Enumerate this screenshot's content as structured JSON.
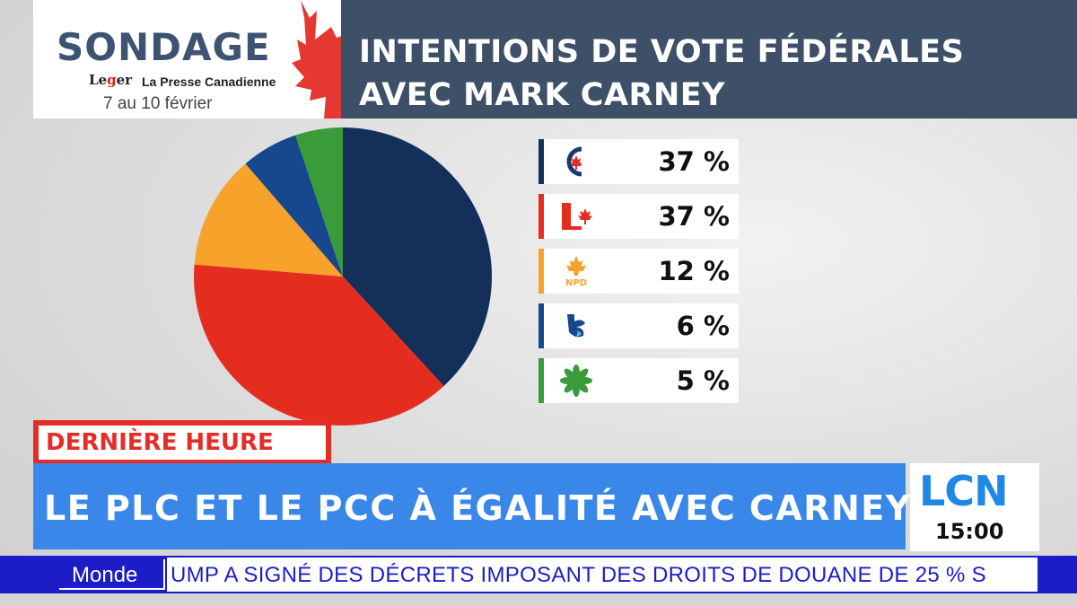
{
  "branding": {
    "sondage": "SONDAGE",
    "pollster_logo_text": "Leger",
    "partner": "La Presse Canadienne",
    "dates": "7 au 10 février"
  },
  "header": {
    "line1": "INTENTIONS DE VOTE FÉDÉRALES",
    "line2": "AVEC MARK CARNEY"
  },
  "chart_data": {
    "type": "pie",
    "slices": [
      {
        "party_icon": "conservative-logo-icon",
        "value": 37,
        "label": "37 %",
        "color": "#14305a"
      },
      {
        "party_icon": "liberal-logo-icon",
        "value": 37,
        "label": "37 %",
        "color": "#e52d1f"
      },
      {
        "party_icon": "ndp-logo-icon",
        "value": 12,
        "label": "12 %",
        "color": "#f6a22b"
      },
      {
        "party_icon": "bloc-logo-icon",
        "value": 6,
        "label": "6 %",
        "color": "#17488e"
      },
      {
        "party_icon": "green-logo-icon",
        "value": 5,
        "label": "5 %",
        "color": "#3a9b3a"
      }
    ]
  },
  "banners": {
    "breaking": "DERNIÈRE HEURE",
    "headline": "LE PLC ET LE PCC À ÉGALITÉ AVEC CARNEY"
  },
  "channel": {
    "logo": "LCN",
    "time": "15:00"
  },
  "ticker": {
    "category": "Monde",
    "text": "UMP A SIGNÉ DES DÉCRETS IMPOSANT DES DROITS DE DOUANE DE 25 % S"
  },
  "colors": {
    "header_bg": "#3d5068",
    "breaking_red": "#e52d27",
    "headline_blue": "#3a87ea",
    "ticker_blue": "#1c1cc8"
  }
}
